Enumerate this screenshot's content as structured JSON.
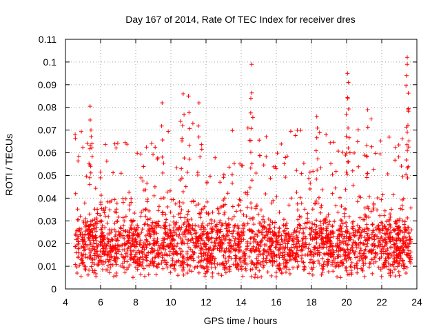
{
  "chart_data": {
    "type": "scatter",
    "title": "Day 167 of 2014, Rate Of TEC Index for receiver dres",
    "xlabel": "GPS time / hours",
    "ylabel": "ROTI / TECUs",
    "xlim": [
      4,
      24
    ],
    "ylim": [
      0,
      0.11
    ],
    "xticks": [
      4,
      6,
      8,
      10,
      12,
      14,
      16,
      18,
      20,
      22,
      24
    ],
    "xtick_labels": [
      "4",
      "6",
      "8",
      "10",
      "12",
      "14",
      "16",
      "18",
      "20",
      "22",
      "24"
    ],
    "yticks": [
      0,
      0.01,
      0.02,
      0.03,
      0.04,
      0.05,
      0.06,
      0.07,
      0.08,
      0.09,
      0.1,
      0.11
    ],
    "ytick_labels": [
      "0",
      "0.01",
      "0.02",
      "0.03",
      "0.04",
      "0.05",
      "0.06",
      "0.07",
      "0.08",
      "0.09",
      "0.1",
      "0.11"
    ],
    "grid": true,
    "marker": "+",
    "series": [
      {
        "name": "ROTI",
        "color": "#ff0000",
        "x_range": [
          4.55,
          23.7
        ],
        "typical_range": [
          0.005,
          0.04
        ],
        "peaks": [
          {
            "x": 5.4,
            "y": 0.0805
          },
          {
            "x": 5.45,
            "y": 0.07
          },
          {
            "x": 9.5,
            "y": 0.082
          },
          {
            "x": 10.7,
            "y": 0.086
          },
          {
            "x": 11.0,
            "y": 0.085
          },
          {
            "x": 11.6,
            "y": 0.082
          },
          {
            "x": 14.6,
            "y": 0.099
          },
          {
            "x": 14.55,
            "y": 0.084
          },
          {
            "x": 18.3,
            "y": 0.076
          },
          {
            "x": 20.05,
            "y": 0.095
          },
          {
            "x": 20.1,
            "y": 0.091
          },
          {
            "x": 21.2,
            "y": 0.079
          },
          {
            "x": 23.45,
            "y": 0.102
          },
          {
            "x": 23.45,
            "y": 0.099
          },
          {
            "x": 23.5,
            "y": 0.079
          }
        ]
      }
    ]
  }
}
